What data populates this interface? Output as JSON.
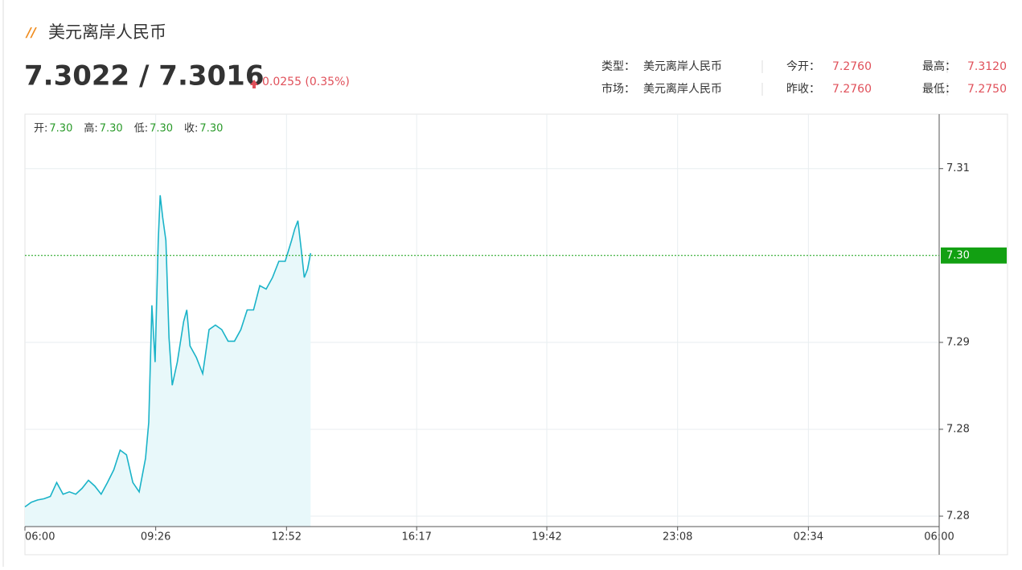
{
  "header": {
    "title": "美元离岸人民币",
    "price": "7.3022 / 7.3016",
    "change": "0.0255 (0.35%)",
    "stats": [
      [
        {
          "label": "类型：",
          "value": "美元离岸人民币"
        },
        {
          "label": "今开：",
          "value": "7.2760"
        },
        {
          "label": "最高：",
          "value": "7.3120"
        }
      ],
      [
        {
          "label": "市场：",
          "value": "美元离岸人民币"
        },
        {
          "label": "昨收：",
          "value": "7.2760"
        },
        {
          "label": "最低：",
          "value": "7.2750"
        }
      ]
    ]
  },
  "chart_data": {
    "type": "line",
    "ohlc": [
      {
        "label": "开:",
        "value": "7.30"
      },
      {
        "label": "高:",
        "value": "7.30"
      },
      {
        "label": "低:",
        "value": "7.30"
      },
      {
        "label": "收:",
        "value": "7.30"
      }
    ],
    "x": [
      "06:00",
      "06:10",
      "06:20",
      "06:30",
      "06:40",
      "06:50",
      "07:00",
      "07:10",
      "07:20",
      "07:30",
      "07:40",
      "07:50",
      "08:00",
      "08:10",
      "08:20",
      "08:30",
      "08:40",
      "08:50",
      "09:00",
      "09:10",
      "09:15",
      "09:20",
      "09:25",
      "09:30",
      "09:33",
      "09:37",
      "09:42",
      "09:47",
      "09:52",
      "10:00",
      "10:10",
      "10:15",
      "10:20",
      "10:30",
      "10:40",
      "10:50",
      "11:00",
      "11:10",
      "11:20",
      "11:30",
      "11:40",
      "11:50",
      "12:00",
      "12:10",
      "12:20",
      "12:30",
      "12:40",
      "12:50",
      "13:00",
      "13:05",
      "13:10",
      "13:15",
      "13:20",
      "13:25",
      "13:30"
    ],
    "series": [
      {
        "color": "#1ab3c8",
        "fill": "#e8f8fa",
        "values": [
          7.2783,
          7.2787,
          7.2789,
          7.279,
          7.2792,
          7.2804,
          7.2794,
          7.2796,
          7.2794,
          7.2799,
          7.2806,
          7.2801,
          7.2794,
          7.2804,
          7.2815,
          7.2832,
          7.2828,
          7.2804,
          7.2796,
          7.2825,
          7.2856,
          7.2957,
          7.2908,
          7.3013,
          7.3052,
          7.3033,
          7.3013,
          7.2929,
          7.2888,
          7.2908,
          7.2943,
          7.2953,
          7.2922,
          7.2912,
          7.2898,
          7.2936,
          7.294,
          7.2936,
          7.2926,
          7.2926,
          7.2936,
          7.2953,
          7.2953,
          7.2974,
          7.2971,
          7.2981,
          7.2995,
          7.2995,
          7.3013,
          7.3023,
          7.303,
          7.3006,
          7.2981,
          7.2988,
          7.3002
        ]
      }
    ],
    "xticks": [
      "06:00",
      "09:26",
      "12:52",
      "16:17",
      "19:42",
      "23:08",
      "02:34",
      "06:00"
    ],
    "ylim": [
      7.2766,
      7.3122
    ],
    "yticks": [
      {
        "value": 7.3075,
        "label": "7.31"
      },
      {
        "value": 7.2925,
        "label": "7.29"
      },
      {
        "value": 7.285,
        "label": "7.28"
      },
      {
        "value": 7.2775,
        "label": "7.28"
      }
    ],
    "last_price": {
      "value": 7.3,
      "label": "7.30",
      "color": "#12a012"
    },
    "grid": true
  }
}
